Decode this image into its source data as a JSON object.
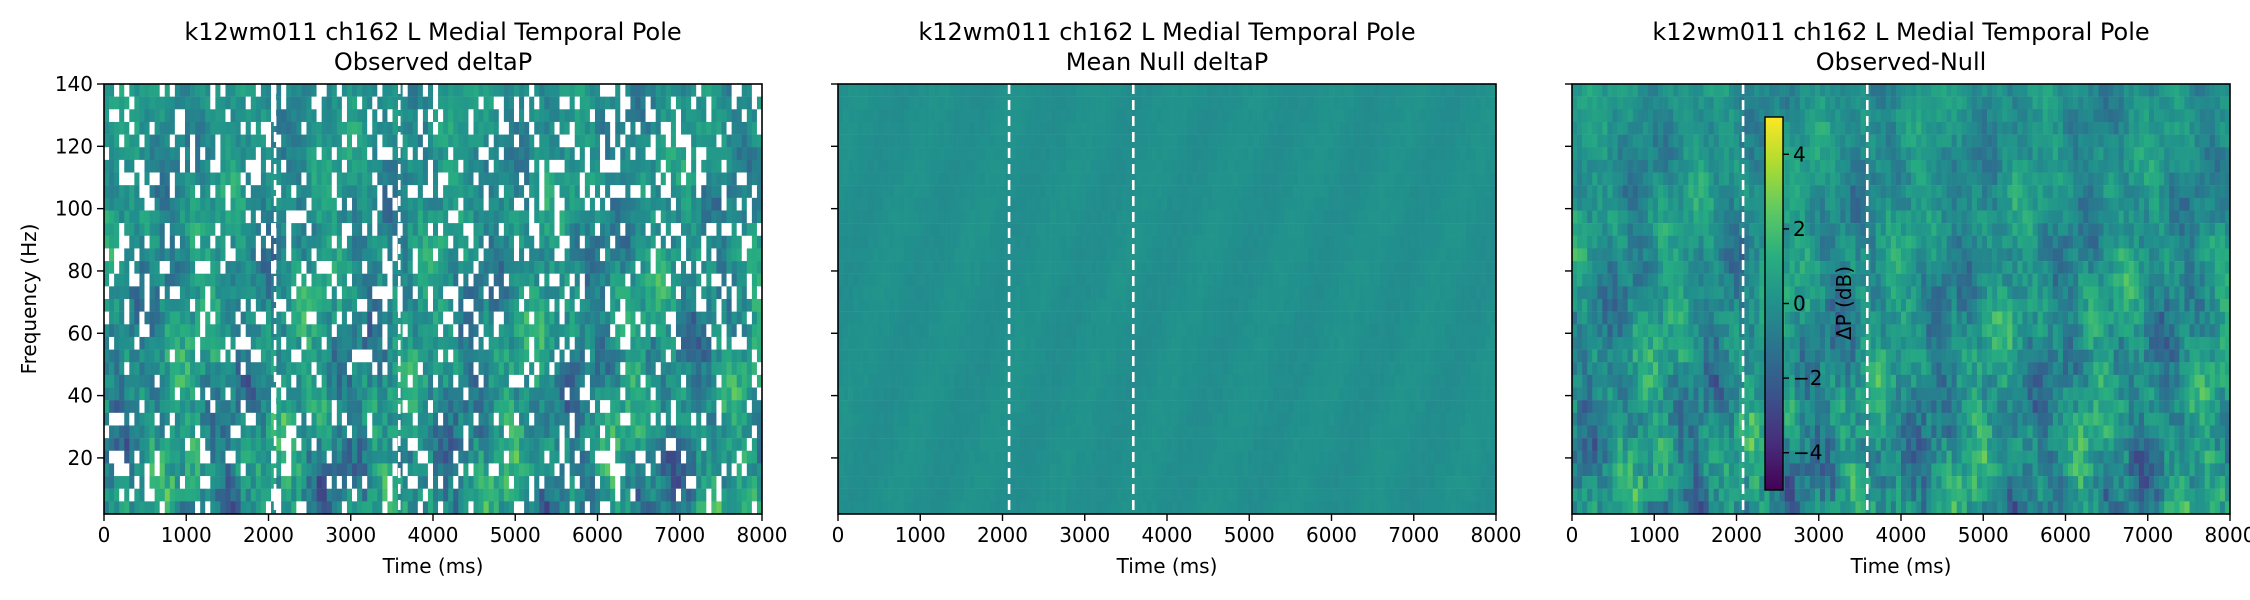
{
  "figure": {
    "colormap": "viridis",
    "colorbar_label": "ΔP (dB)",
    "colorbar_range": [
      -5,
      5
    ],
    "colorbar_ticks": [
      "4",
      "2",
      "0",
      "−2",
      "−4"
    ],
    "colorbar_tick_values": [
      4,
      2,
      0,
      -2,
      -4
    ],
    "event_line_color": "#ffffff"
  },
  "chart_data": [
    {
      "type": "heatmap",
      "title_line1": "k12wm011 ch162 L Medial Temporal Pole",
      "title_line2": "Observed deltaP",
      "xlabel": "Time (ms)",
      "ylabel": "Frequency (Hz)",
      "xlim": [
        0,
        8000
      ],
      "ylim": [
        2,
        140
      ],
      "xticks": [
        0,
        1000,
        2000,
        3000,
        4000,
        5000,
        6000,
        7000,
        8000
      ],
      "xtick_labels": [
        "0",
        "1000",
        "2000",
        "3000",
        "4000",
        "5000",
        "6000",
        "7000",
        "8000"
      ],
      "yticks": [
        20,
        40,
        60,
        80,
        100,
        120,
        140
      ],
      "ytick_labels": [
        "20",
        "40",
        "60",
        "80",
        "100",
        "120",
        "140"
      ],
      "event_lines_ms": [
        2080,
        3590
      ],
      "value_range_db": [
        -5,
        5
      ],
      "masked_gaps": true
    },
    {
      "type": "heatmap",
      "title_line1": "k12wm011 ch162 L Medial Temporal Pole",
      "title_line2": "Mean Null deltaP",
      "xlabel": "Time (ms)",
      "ylabel": "",
      "xlim": [
        0,
        8000
      ],
      "ylim": [
        2,
        140
      ],
      "xticks": [
        0,
        1000,
        2000,
        3000,
        4000,
        5000,
        6000,
        7000,
        8000
      ],
      "xtick_labels": [
        "0",
        "1000",
        "2000",
        "3000",
        "4000",
        "5000",
        "6000",
        "7000",
        "8000"
      ],
      "yticks": [
        20,
        40,
        60,
        80,
        100,
        120,
        140
      ],
      "ytick_labels": [],
      "event_lines_ms": [
        2080,
        3590
      ],
      "value_range_db": [
        -0.5,
        0.5
      ],
      "masked_gaps": false
    },
    {
      "type": "heatmap",
      "title_line1": "k12wm011 ch162 L Medial Temporal Pole",
      "title_line2": "Observed-Null",
      "xlabel": "Time (ms)",
      "ylabel": "",
      "xlim": [
        0,
        8000
      ],
      "ylim": [
        2,
        140
      ],
      "xticks": [
        0,
        1000,
        2000,
        3000,
        4000,
        5000,
        6000,
        7000,
        8000
      ],
      "xtick_labels": [
        "0",
        "1000",
        "2000",
        "3000",
        "4000",
        "5000",
        "6000",
        "7000",
        "8000"
      ],
      "yticks": [
        20,
        40,
        60,
        80,
        100,
        120,
        140
      ],
      "ytick_labels": [],
      "event_lines_ms": [
        2080,
        3590
      ],
      "value_range_db": [
        -5,
        5
      ],
      "masked_gaps": false
    }
  ]
}
